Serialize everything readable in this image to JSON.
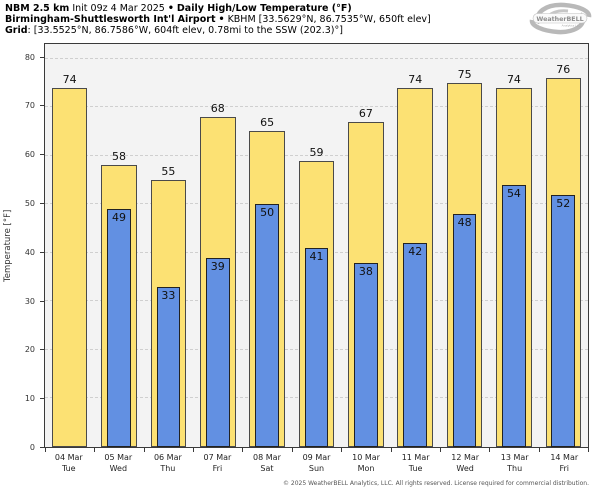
{
  "header": {
    "model": "NBM 2.5 km",
    "init": "Init 09z 4 Mar 2025",
    "sep": "•",
    "product": "Daily High/Low Temperature (°F)",
    "station_name": "Birmingham-Shuttlesworth Int'l Airport",
    "station_details": "KBHM [33.5629°N, 86.7535°W, 650ft elev]",
    "grid_label": "Grid",
    "grid_details": ": [33.5525°N, 86.7586°W, 604ft elev, 0.78mi to the SSW (202.3)°]"
  },
  "logo": {
    "name": "WeatherBELL",
    "tagline": "Analytics LLC"
  },
  "footer": {
    "copyright": "© 2025 WeatherBELL Analytics, LLC. All rights reserved. License required for commercial distribution."
  },
  "chart_data": {
    "type": "bar",
    "title": "Daily High/Low Temperature (°F)",
    "xlabel": "",
    "ylabel": "Temperature [°F]",
    "ylim": [
      0,
      83
    ],
    "yticks": [
      0,
      10,
      20,
      30,
      40,
      50,
      60,
      70,
      80
    ],
    "grid": "horizontal-dashed",
    "legend_position": "none",
    "categories": [
      {
        "date": "04 Mar",
        "day": "Tue"
      },
      {
        "date": "05 Mar",
        "day": "Wed"
      },
      {
        "date": "06 Mar",
        "day": "Thu"
      },
      {
        "date": "07 Mar",
        "day": "Fri"
      },
      {
        "date": "08 Mar",
        "day": "Sat"
      },
      {
        "date": "09 Mar",
        "day": "Sun"
      },
      {
        "date": "10 Mar",
        "day": "Mon"
      },
      {
        "date": "11 Mar",
        "day": "Tue"
      },
      {
        "date": "12 Mar",
        "day": "Wed"
      },
      {
        "date": "13 Mar",
        "day": "Thu"
      },
      {
        "date": "14 Mar",
        "day": "Fri"
      }
    ],
    "series": [
      {
        "name": "Daily High",
        "color": "#fce173",
        "edge_color": "#4a4a4a",
        "values": [
          74,
          58,
          55,
          68,
          65,
          59,
          67,
          74,
          75,
          74,
          76
        ]
      },
      {
        "name": "Daily Low",
        "color": "#6290e2",
        "edge_color": "#222222",
        "values": [
          null,
          49,
          33,
          39,
          50,
          41,
          38,
          42,
          48,
          54,
          52
        ]
      }
    ]
  },
  "colors": {
    "plot_bg": "#f3f3f3",
    "grid_line": "#cfcfcf",
    "plot_border": "#3a3a3a",
    "high_bar": "#fce173",
    "low_bar": "#6290e2"
  }
}
